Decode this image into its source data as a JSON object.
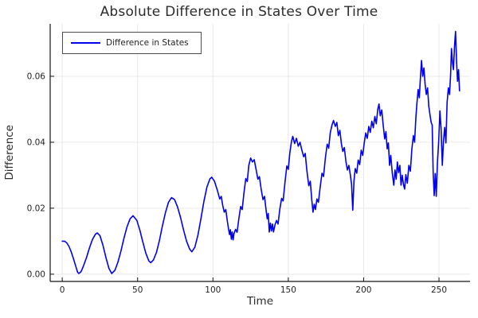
{
  "title": "Absolute Difference in States Over Time",
  "colors": {
    "series_blue": "#0000f0",
    "grid": "#e9e9e9",
    "axis": "#141414",
    "tick_text": "#1f1f1f",
    "title_text": "#2b2b2b",
    "legend_border": "#4d4d4d",
    "background": "#ffffff"
  },
  "chart_data": {
    "type": "line",
    "title": "Absolute Difference in States Over Time",
    "xlabel": "Time",
    "ylabel": "Difference",
    "xlim": [
      -8,
      270.6
    ],
    "ylim": [
      -0.0022,
      0.0759
    ],
    "grid": true,
    "legend_position": "top-left",
    "xticks": {
      "values": [
        0,
        50,
        100,
        150,
        200,
        250
      ],
      "labels": [
        "0",
        "50",
        "100",
        "150",
        "200",
        "250"
      ]
    },
    "yticks": {
      "values": [
        0.0,
        0.02,
        0.04,
        0.06
      ],
      "labels": [
        "0.00",
        "0.02",
        "0.04",
        "0.06"
      ]
    },
    "series": [
      {
        "name": "Difference in States",
        "color": "#0000f0",
        "points": [
          [
            0,
            0.01
          ],
          [
            1.5,
            0.01
          ],
          [
            3,
            0.0095
          ],
          [
            4.5,
            0.0084
          ],
          [
            6,
            0.0067
          ],
          [
            7.5,
            0.0046
          ],
          [
            9,
            0.0023
          ],
          [
            10.2,
            0.0006
          ],
          [
            11,
            0.0002
          ],
          [
            12.5,
            0.0008
          ],
          [
            14,
            0.0024
          ],
          [
            16,
            0.0049
          ],
          [
            18,
            0.0079
          ],
          [
            20,
            0.0105
          ],
          [
            22,
            0.0121
          ],
          [
            23.2,
            0.0125
          ],
          [
            25,
            0.0117
          ],
          [
            27,
            0.0088
          ],
          [
            29,
            0.005
          ],
          [
            31,
            0.0017
          ],
          [
            32.8,
            0.0002
          ],
          [
            35,
            0.0012
          ],
          [
            37,
            0.0037
          ],
          [
            39,
            0.0071
          ],
          [
            41,
            0.011
          ],
          [
            43,
            0.0144
          ],
          [
            45,
            0.0168
          ],
          [
            47,
            0.0177
          ],
          [
            49.5,
            0.0163
          ],
          [
            51.5,
            0.0133
          ],
          [
            53.5,
            0.0097
          ],
          [
            55.5,
            0.0063
          ],
          [
            57.5,
            0.004
          ],
          [
            58.7,
            0.0035
          ],
          [
            60.5,
            0.0043
          ],
          [
            62.5,
            0.0066
          ],
          [
            64.5,
            0.0102
          ],
          [
            66.5,
            0.0147
          ],
          [
            68.5,
            0.0187
          ],
          [
            70.5,
            0.0218
          ],
          [
            72.5,
            0.0232
          ],
          [
            74.5,
            0.0226
          ],
          [
            76.5,
            0.0204
          ],
          [
            78.5,
            0.0172
          ],
          [
            80.5,
            0.0134
          ],
          [
            82.5,
            0.01
          ],
          [
            84.5,
            0.0076
          ],
          [
            86,
            0.0068
          ],
          [
            88,
            0.0082
          ],
          [
            90,
            0.0118
          ],
          [
            92,
            0.0168
          ],
          [
            94,
            0.022
          ],
          [
            96,
            0.0264
          ],
          [
            98,
            0.0289
          ],
          [
            99.2,
            0.0294
          ],
          [
            101,
            0.0282
          ],
          [
            103,
            0.0253
          ],
          [
            104.5,
            0.0228
          ],
          [
            105.5,
            0.0236
          ],
          [
            106.5,
            0.0208
          ],
          [
            107.5,
            0.0188
          ],
          [
            108.5,
            0.0196
          ],
          [
            109.5,
            0.0162
          ],
          [
            110.3,
            0.0138
          ],
          [
            111,
            0.012
          ],
          [
            111.6,
            0.0135
          ],
          [
            112.2,
            0.0106
          ],
          [
            112.8,
            0.0128
          ],
          [
            113.4,
            0.0104
          ],
          [
            114,
            0.0124
          ],
          [
            115,
            0.0136
          ],
          [
            116,
            0.0127
          ],
          [
            117.2,
            0.0168
          ],
          [
            118.4,
            0.0205
          ],
          [
            119.4,
            0.0196
          ],
          [
            120.6,
            0.0248
          ],
          [
            121.8,
            0.029
          ],
          [
            122.8,
            0.0281
          ],
          [
            123.8,
            0.033
          ],
          [
            125,
            0.0352
          ],
          [
            126.2,
            0.034
          ],
          [
            127.4,
            0.0347
          ],
          [
            128.6,
            0.0318
          ],
          [
            129.8,
            0.0288
          ],
          [
            130.8,
            0.0296
          ],
          [
            132,
            0.0258
          ],
          [
            133.2,
            0.0226
          ],
          [
            134.2,
            0.0236
          ],
          [
            135.2,
            0.0196
          ],
          [
            136,
            0.0168
          ],
          [
            136.7,
            0.0184
          ],
          [
            137.4,
            0.0128
          ],
          [
            138.1,
            0.0155
          ],
          [
            138.8,
            0.0131
          ],
          [
            139.5,
            0.0152
          ],
          [
            140.2,
            0.0128
          ],
          [
            141.2,
            0.015
          ],
          [
            142.2,
            0.0163
          ],
          [
            143.2,
            0.0152
          ],
          [
            144.4,
            0.0198
          ],
          [
            145.6,
            0.023
          ],
          [
            146.6,
            0.0222
          ],
          [
            147.8,
            0.0278
          ],
          [
            149,
            0.0328
          ],
          [
            150,
            0.0318
          ],
          [
            151,
            0.0368
          ],
          [
            152.2,
            0.0404
          ],
          [
            153,
            0.0418
          ],
          [
            154.2,
            0.0396
          ],
          [
            155.4,
            0.0412
          ],
          [
            156.6,
            0.0388
          ],
          [
            157.8,
            0.04
          ],
          [
            159,
            0.0376
          ],
          [
            160.2,
            0.0356
          ],
          [
            161.2,
            0.0366
          ],
          [
            162.4,
            0.0312
          ],
          [
            163.6,
            0.0268
          ],
          [
            164.6,
            0.0282
          ],
          [
            165.6,
            0.0224
          ],
          [
            166.4,
            0.0188
          ],
          [
            167.2,
            0.0212
          ],
          [
            168,
            0.0196
          ],
          [
            169,
            0.0228
          ],
          [
            170,
            0.0218
          ],
          [
            171.2,
            0.0266
          ],
          [
            172.4,
            0.0306
          ],
          [
            173.4,
            0.0296
          ],
          [
            174.6,
            0.0352
          ],
          [
            175.8,
            0.0394
          ],
          [
            176.8,
            0.0382
          ],
          [
            177.8,
            0.0428
          ],
          [
            179,
            0.0452
          ],
          [
            180,
            0.0466
          ],
          [
            181.2,
            0.0448
          ],
          [
            182.2,
            0.046
          ],
          [
            183.2,
            0.042
          ],
          [
            184.2,
            0.0436
          ],
          [
            185.2,
            0.0396
          ],
          [
            186.2,
            0.0372
          ],
          [
            187.2,
            0.0384
          ],
          [
            188.2,
            0.0344
          ],
          [
            189.2,
            0.0316
          ],
          [
            190.2,
            0.033
          ],
          [
            191.2,
            0.03
          ],
          [
            192,
            0.0272
          ],
          [
            192.8,
            0.0194
          ],
          [
            193.6,
            0.0282
          ],
          [
            194.4,
            0.032
          ],
          [
            195.4,
            0.0306
          ],
          [
            196.4,
            0.0346
          ],
          [
            197.4,
            0.0332
          ],
          [
            198.4,
            0.0376
          ],
          [
            199.4,
            0.036
          ],
          [
            200.4,
            0.0398
          ],
          [
            201.4,
            0.0428
          ],
          [
            202.4,
            0.0412
          ],
          [
            203.4,
            0.0448
          ],
          [
            204.4,
            0.043
          ],
          [
            205.4,
            0.0464
          ],
          [
            206.4,
            0.0444
          ],
          [
            207.4,
            0.0478
          ],
          [
            208.4,
            0.0456
          ],
          [
            209.4,
            0.05
          ],
          [
            210.2,
            0.0516
          ],
          [
            211,
            0.048
          ],
          [
            212,
            0.0498
          ],
          [
            213,
            0.0452
          ],
          [
            214,
            0.041
          ],
          [
            214.8,
            0.0432
          ],
          [
            215.6,
            0.038
          ],
          [
            216.4,
            0.0398
          ],
          [
            217.2,
            0.033
          ],
          [
            218,
            0.036
          ],
          [
            219,
            0.0306
          ],
          [
            220,
            0.027
          ],
          [
            220.8,
            0.0316
          ],
          [
            221.6,
            0.0288
          ],
          [
            222.4,
            0.034
          ],
          [
            223.2,
            0.0308
          ],
          [
            224,
            0.033
          ],
          [
            224.8,
            0.027
          ],
          [
            225.6,
            0.03
          ],
          [
            226.4,
            0.0272
          ],
          [
            227.2,
            0.0258
          ],
          [
            228,
            0.0302
          ],
          [
            229,
            0.0276
          ],
          [
            230,
            0.033
          ],
          [
            231,
            0.0312
          ],
          [
            232,
            0.038
          ],
          [
            233,
            0.042
          ],
          [
            233.8,
            0.04
          ],
          [
            234.6,
            0.047
          ],
          [
            235.4,
            0.052
          ],
          [
            236.2,
            0.056
          ],
          [
            236.9,
            0.0535
          ],
          [
            237.6,
            0.059
          ],
          [
            238.4,
            0.0648
          ],
          [
            239.2,
            0.06
          ],
          [
            240,
            0.0625
          ],
          [
            240.8,
            0.0576
          ],
          [
            241.6,
            0.0545
          ],
          [
            242.4,
            0.0565
          ],
          [
            243.2,
            0.051
          ],
          [
            244,
            0.0484
          ],
          [
            244.8,
            0.046
          ],
          [
            245.5,
            0.0452
          ],
          [
            246.1,
            0.031
          ],
          [
            246.8,
            0.0238
          ],
          [
            247.5,
            0.0305
          ],
          [
            248.2,
            0.0236
          ],
          [
            249,
            0.034
          ],
          [
            249.8,
            0.0405
          ],
          [
            250.6,
            0.0495
          ],
          [
            251.4,
            0.044
          ],
          [
            252.2,
            0.033
          ],
          [
            253,
            0.0405
          ],
          [
            253.8,
            0.0445
          ],
          [
            254.6,
            0.0398
          ],
          [
            255.4,
            0.052
          ],
          [
            256.2,
            0.0565
          ],
          [
            257,
            0.0545
          ],
          [
            257.7,
            0.0605
          ],
          [
            258.3,
            0.0684
          ],
          [
            259,
            0.064
          ],
          [
            259.6,
            0.062
          ],
          [
            260.3,
            0.069
          ],
          [
            261,
            0.0736
          ],
          [
            261.7,
            0.064
          ],
          [
            262.3,
            0.0585
          ],
          [
            263,
            0.062
          ],
          [
            263.6,
            0.0556
          ]
        ]
      }
    ]
  }
}
